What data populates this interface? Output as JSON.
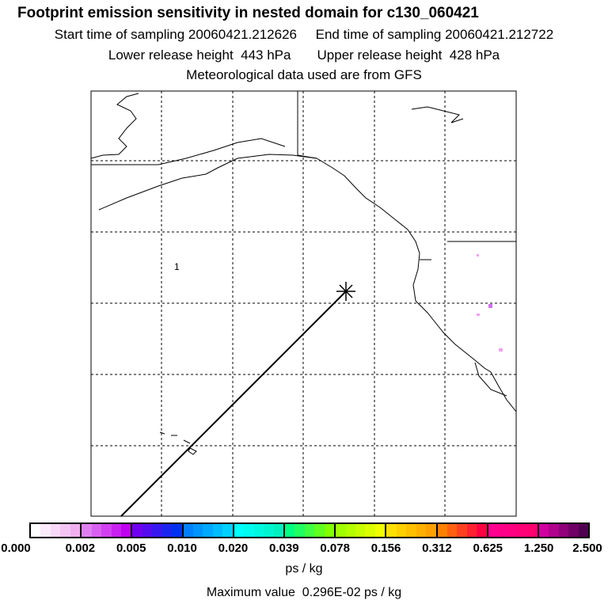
{
  "header": {
    "title": "Footprint emission sensitivity in nested domain for c130_060421",
    "sampling_line": "Start time of sampling 20060421.212626     End time of sampling 20060421.212722",
    "release_line": "Lower release height  443 hPa       Upper release height  428 hPa",
    "met_line": "Meteorological data used are from GFS"
  },
  "map": {
    "release_marker_label": "1",
    "release_marker_icon": "asterisk-icon"
  },
  "colorbar": {
    "tick_labels": [
      "0.000",
      "0.002",
      "0.005",
      "0.010",
      "0.020",
      "0.039",
      "0.078",
      "0.156",
      "0.312",
      "0.625",
      "1.250",
      "2.500"
    ],
    "segments": [
      [
        "#ffffff",
        "#f0b0f0"
      ],
      [
        "#e080f0",
        "#c000f0"
      ],
      [
        "#7000f0",
        "#0030f0"
      ],
      [
        "#0080ff",
        "#00d0ff"
      ],
      [
        "#00ffff",
        "#00f0c0"
      ],
      [
        "#00ff80",
        "#80ff00"
      ],
      [
        "#a0ff00",
        "#f0ff00"
      ],
      [
        "#ffe000",
        "#ffa000"
      ],
      [
        "#ff8000",
        "#ff0040"
      ],
      [
        "#ff0090",
        "#ff0070"
      ],
      [
        "#d000a0",
        "#500050"
      ]
    ],
    "units": "ps / kg",
    "max_value_text": "Maximum value  0.296E-02 ps / kg"
  }
}
